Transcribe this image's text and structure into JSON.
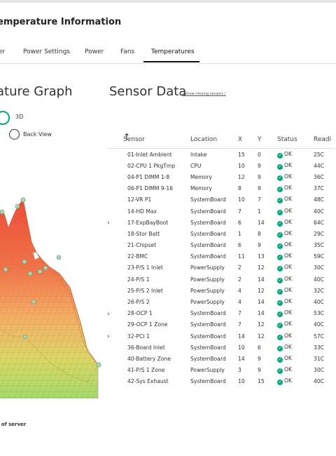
{
  "page": {
    "title": "emperature Information",
    "footnote": "t of server"
  },
  "tabs": [
    {
      "label": "er"
    },
    {
      "label": "Power Settings"
    },
    {
      "label": "Power"
    },
    {
      "label": "Fans"
    },
    {
      "label": "Temperatures",
      "active": true
    }
  ],
  "graph": {
    "title": "ature Graph",
    "options": {
      "view_3d": "3D",
      "back_view": "Back View"
    },
    "selected": "3D"
  },
  "sensors": {
    "title": "Sensor Data",
    "show_missing": "( show missing sensors )",
    "columns": [
      "Sensor",
      "Location",
      "X",
      "Y",
      "Status",
      "Readi"
    ],
    "rows": [
      {
        "sensor": "01-Inlet Ambient",
        "location": "Intake",
        "x": "15",
        "y": "0",
        "status": "OK",
        "reading": "25C"
      },
      {
        "sensor": "02-CPU 1 PkgTmp",
        "location": "CPU",
        "x": "10",
        "y": "9",
        "status": "OK",
        "reading": "44C"
      },
      {
        "sensor": "04-P1 DIMM 1-8",
        "location": "Memory",
        "x": "12",
        "y": "9",
        "status": "OK",
        "reading": "36C"
      },
      {
        "sensor": "06-P1 DIMM 9-16",
        "location": "Memory",
        "x": "8",
        "y": "9",
        "status": "OK",
        "reading": "37C"
      },
      {
        "sensor": "12-VR P1",
        "location": "SystemBoard",
        "x": "10",
        "y": "7",
        "status": "OK",
        "reading": "48C"
      },
      {
        "sensor": "14-HD Max",
        "location": "SystemBoard",
        "x": "7",
        "y": "1",
        "status": "OK",
        "reading": "40C"
      },
      {
        "sensor": "17-ExpBayBoot",
        "location": "SystemBoard",
        "x": "6",
        "y": "14",
        "status": "OK",
        "reading": "64C",
        "expandable": true
      },
      {
        "sensor": "18-Stor Batt",
        "location": "SystemBoard",
        "x": "1",
        "y": "8",
        "status": "OK",
        "reading": "29C"
      },
      {
        "sensor": "21-Chipset",
        "location": "SystemBoard",
        "x": "6",
        "y": "9",
        "status": "OK",
        "reading": "35C"
      },
      {
        "sensor": "22-BMC",
        "location": "SystemBoard",
        "x": "11",
        "y": "13",
        "status": "OK",
        "reading": "59C"
      },
      {
        "sensor": "23-P/S 1 Inlet",
        "location": "PowerSupply",
        "x": "2",
        "y": "12",
        "status": "OK",
        "reading": "30C"
      },
      {
        "sensor": "24-P/S 1",
        "location": "PowerSupply",
        "x": "2",
        "y": "14",
        "status": "OK",
        "reading": "40C"
      },
      {
        "sensor": "25-P/S 2 Inlet",
        "location": "PowerSupply",
        "x": "4",
        "y": "12",
        "status": "OK",
        "reading": "32C"
      },
      {
        "sensor": "26-P/S 2",
        "location": "PowerSupply",
        "x": "4",
        "y": "14",
        "status": "OK",
        "reading": "40C"
      },
      {
        "sensor": "28-OCP 1",
        "location": "SystemBoard",
        "x": "7",
        "y": "14",
        "status": "OK",
        "reading": "53C",
        "expandable": true
      },
      {
        "sensor": "29-OCP 1 Zone",
        "location": "SystemBoard",
        "x": "7",
        "y": "12",
        "status": "OK",
        "reading": "40C"
      },
      {
        "sensor": "32-PCI 1",
        "location": "SystemBoard",
        "x": "14",
        "y": "12",
        "status": "OK",
        "reading": "57C",
        "expandable": true
      },
      {
        "sensor": "36-Board Inlet",
        "location": "SystemBoard",
        "x": "10",
        "y": "6",
        "status": "OK",
        "reading": "33C"
      },
      {
        "sensor": "40-Battery Zone",
        "location": "SystemBoard",
        "x": "14",
        "y": "9",
        "status": "OK",
        "reading": "31C"
      },
      {
        "sensor": "41-P/S 1 Zone",
        "location": "PowerSupply",
        "x": "3",
        "y": "9",
        "status": "OK",
        "reading": "30C"
      },
      {
        "sensor": "42-Sys Exhaust",
        "location": "SystemBoard",
        "x": "10",
        "y": "15",
        "status": "OK",
        "reading": "40C"
      }
    ]
  },
  "colors": {
    "accent": "#01a982",
    "hot": "#ef5b3c",
    "warm": "#f5a25d",
    "cool": "#9fdc6a"
  },
  "icons": {
    "sort": "arrow-up-icon",
    "status": "check-circle-icon",
    "expand": "chevron-right-icon"
  }
}
